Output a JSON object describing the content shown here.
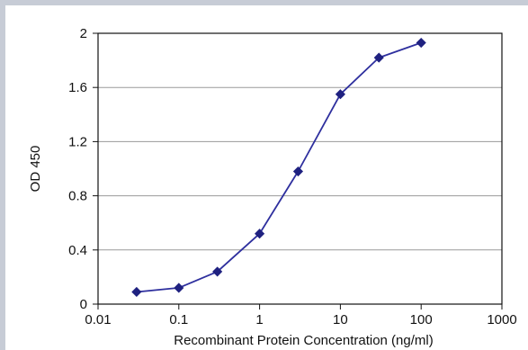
{
  "chart_data": {
    "type": "line",
    "title": "",
    "xlabel": "Recombinant Protein Concentration (ng/ml)",
    "ylabel": "OD 450",
    "x_scale": "log",
    "xlim": [
      0.01,
      1000
    ],
    "ylim": [
      0,
      2
    ],
    "x_ticks": [
      "0.01",
      "0.1",
      "1",
      "10",
      "100",
      "1000"
    ],
    "y_ticks": [
      "0",
      "0.4",
      "0.8",
      "1.2",
      "1.6",
      "2"
    ],
    "grid": "horizontal",
    "legend": "none",
    "series": [
      {
        "color": "#2e2f9e",
        "x": [
          0.03,
          0.1,
          0.3,
          1,
          3,
          10,
          30,
          100
        ],
        "y": [
          0.09,
          0.12,
          0.24,
          0.52,
          0.98,
          1.55,
          1.82,
          1.93
        ]
      }
    ]
  }
}
